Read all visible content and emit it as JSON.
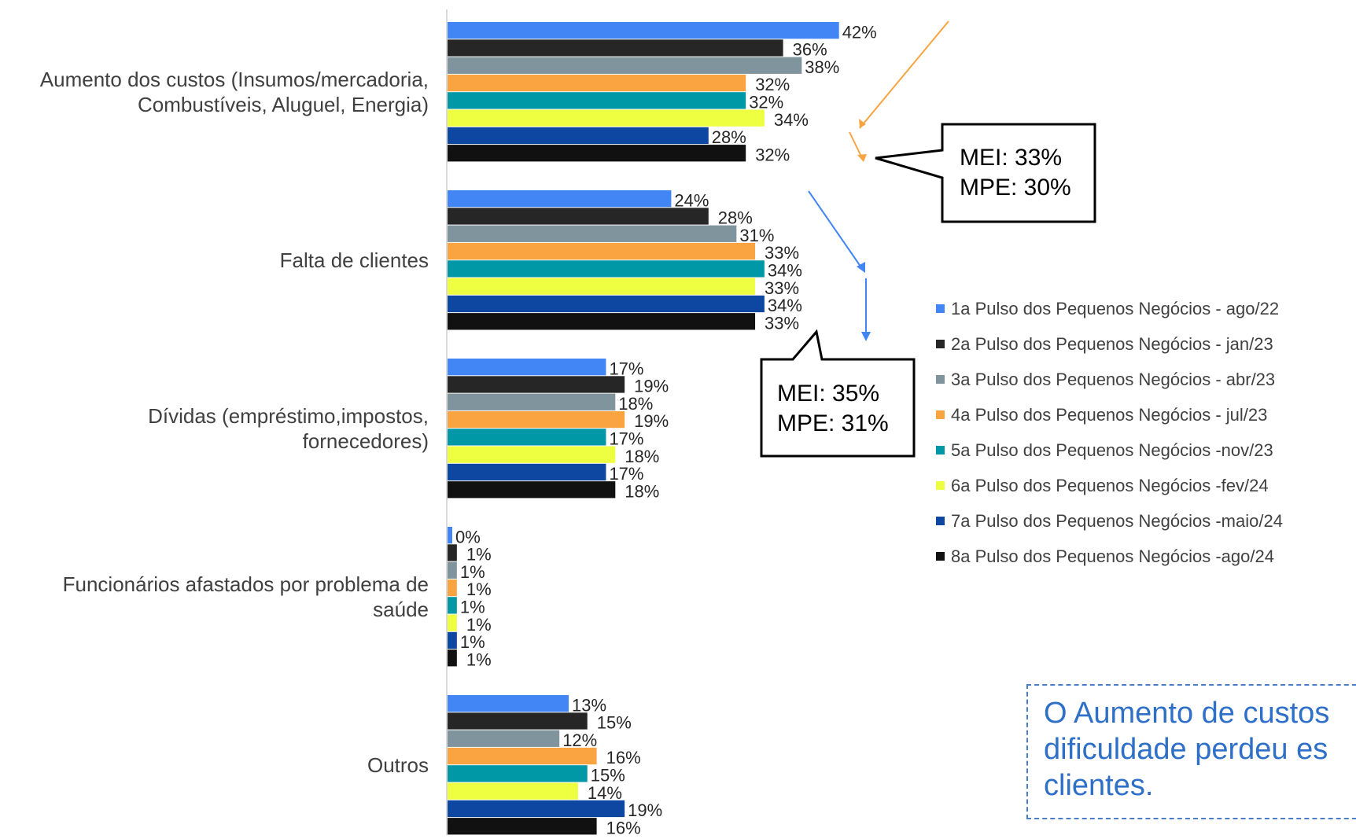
{
  "chart_data": {
    "type": "bar",
    "orientation": "horizontal",
    "categories": [
      "Aumento dos custos (Insumos/mercadoria, Combustíveis, Aluguel, Energia)",
      "Falta de clientes",
      "Dívidas (empréstimo,impostos, fornecedores)",
      "Funcionários afastados por problema de saúde",
      "Outros"
    ],
    "category_lines": [
      [
        "Aumento dos custos (Insumos/mercadoria,",
        "Combustíveis, Aluguel, Energia)"
      ],
      [
        "Falta de clientes"
      ],
      [
        "Dívidas (empréstimo,impostos,",
        "fornecedores)"
      ],
      [
        "Funcionários afastados por problema de",
        "saúde"
      ],
      [
        "Outros"
      ]
    ],
    "series": [
      {
        "name": "1a Pulso dos Pequenos Negócios - ago/22",
        "color": "#4285f4",
        "values": [
          42,
          24,
          17,
          0,
          13
        ]
      },
      {
        "name": "2a Pulso dos Pequenos Negócios - jan/23",
        "color": "#262626",
        "values": [
          36,
          28,
          19,
          1,
          15
        ]
      },
      {
        "name": "3a Pulso dos Pequenos Negócios - abr/23",
        "color": "#7f949c",
        "values": [
          38,
          31,
          18,
          1,
          12
        ]
      },
      {
        "name": "4a Pulso dos Pequenos Negócios - jul/23",
        "color": "#f9a440",
        "values": [
          32,
          33,
          19,
          1,
          16
        ]
      },
      {
        "name": "5a Pulso dos Pequenos Negócios -nov/23",
        "color": "#0097a7",
        "values": [
          32,
          34,
          17,
          1,
          15
        ]
      },
      {
        "name": "6a Pulso dos Pequenos Negócios -fev/24",
        "color": "#eeff41",
        "values": [
          34,
          33,
          18,
          1,
          14
        ]
      },
      {
        "name": "7a Pulso dos Pequenos Negócios -maio/24",
        "color": "#0d47a1",
        "values": [
          28,
          34,
          17,
          1,
          19
        ]
      },
      {
        "name": "8a Pulso dos Pequenos Negócios -ago/24",
        "color": "#111111",
        "values": [
          32,
          33,
          18,
          1,
          16
        ]
      }
    ],
    "value_suffix": "%",
    "legend_position": "right",
    "grid": false
  },
  "callouts": [
    {
      "lines": [
        "MEI: 33%",
        "MPE: 30%"
      ]
    },
    {
      "lines": [
        "MEI: 35%",
        "MPE: 31%"
      ]
    }
  ],
  "note": {
    "lines": [
      "O Aumento de custos",
      "dificuldade perdeu es",
      "clientes."
    ]
  }
}
